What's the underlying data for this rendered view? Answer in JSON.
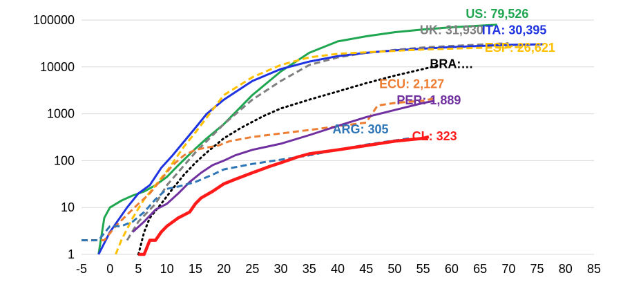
{
  "chart_data": {
    "type": "line",
    "yscale": "log",
    "xlim": [
      -5,
      85
    ],
    "ylim": [
      1,
      100000
    ],
    "x_ticks": [
      "-5",
      "0",
      "5",
      "10",
      "15",
      "20",
      "25",
      "30",
      "35",
      "40",
      "45",
      "50",
      "55",
      "60",
      "65",
      "70",
      "75",
      "80",
      "85"
    ],
    "y_ticks": [
      "1",
      "10",
      "100",
      "1000",
      "10000",
      "100000"
    ],
    "grid": "horizontal",
    "legend": "none",
    "series": [
      {
        "name": "US",
        "label": "US: 79,526",
        "color": "#1FA650",
        "dash": "solid",
        "points": [
          [
            -2,
            1
          ],
          [
            -1,
            6
          ],
          [
            0,
            10
          ],
          [
            2,
            14
          ],
          [
            4,
            18
          ],
          [
            6,
            22
          ],
          [
            8,
            30
          ],
          [
            10,
            45
          ],
          [
            12,
            80
          ],
          [
            15,
            180
          ],
          [
            17,
            300
          ],
          [
            20,
            600
          ],
          [
            25,
            2500
          ],
          [
            30,
            8000
          ],
          [
            35,
            20000
          ],
          [
            40,
            35000
          ],
          [
            45,
            45000
          ],
          [
            50,
            55000
          ],
          [
            55,
            63000
          ],
          [
            60,
            70000
          ],
          [
            65,
            76000
          ],
          [
            68,
            79526
          ]
        ]
      },
      {
        "name": "UK",
        "label": "UK: 31,930",
        "color": "#7F7F7F",
        "dash": "dashed",
        "points": [
          [
            3,
            2
          ],
          [
            5,
            5
          ],
          [
            8,
            12
          ],
          [
            10,
            30
          ],
          [
            15,
            150
          ],
          [
            20,
            600
          ],
          [
            25,
            2000
          ],
          [
            30,
            5000
          ],
          [
            35,
            11000
          ],
          [
            40,
            16000
          ],
          [
            45,
            20000
          ],
          [
            50,
            23000
          ],
          [
            55,
            26000
          ],
          [
            60,
            28000
          ],
          [
            65,
            30000
          ],
          [
            70,
            31930
          ]
        ]
      },
      {
        "name": "ITA",
        "label": "ITA: 30,395",
        "color": "#1F33E0",
        "dash": "solid",
        "points": [
          [
            -2,
            1
          ],
          [
            0,
            3
          ],
          [
            3,
            10
          ],
          [
            5,
            20
          ],
          [
            7,
            30
          ],
          [
            9,
            70
          ],
          [
            11,
            130
          ],
          [
            15,
            500
          ],
          [
            17,
            1000
          ],
          [
            20,
            2000
          ],
          [
            25,
            5000
          ],
          [
            30,
            9000
          ],
          [
            35,
            13000
          ],
          [
            40,
            17000
          ],
          [
            45,
            20000
          ],
          [
            50,
            22500
          ],
          [
            55,
            24500
          ],
          [
            60,
            26500
          ],
          [
            65,
            28000
          ],
          [
            70,
            29500
          ],
          [
            76,
            30395
          ]
        ]
      },
      {
        "name": "ESP",
        "label": "ESP: 26,621",
        "color": "#FFC000",
        "dash": "dashed",
        "points": [
          [
            1,
            1
          ],
          [
            2,
            2
          ],
          [
            4,
            6
          ],
          [
            6,
            15
          ],
          [
            8,
            30
          ],
          [
            10,
            60
          ],
          [
            13,
            200
          ],
          [
            15,
            400
          ],
          [
            18,
            1200
          ],
          [
            20,
            2500
          ],
          [
            25,
            6000
          ],
          [
            30,
            11000
          ],
          [
            35,
            16000
          ],
          [
            40,
            19000
          ],
          [
            45,
            20500
          ],
          [
            50,
            22000
          ],
          [
            55,
            23500
          ],
          [
            60,
            24500
          ],
          [
            65,
            25500
          ],
          [
            70,
            26200
          ],
          [
            73,
            26621
          ]
        ]
      },
      {
        "name": "BRA",
        "label": "BRA:…",
        "color": "#000000",
        "dash": "dotted",
        "points": [
          [
            5,
            1
          ],
          [
            6,
            3
          ],
          [
            7,
            6
          ],
          [
            9,
            12
          ],
          [
            11,
            25
          ],
          [
            13,
            50
          ],
          [
            15,
            90
          ],
          [
            17,
            150
          ],
          [
            20,
            300
          ],
          [
            23,
            500
          ],
          [
            27,
            900
          ],
          [
            30,
            1300
          ],
          [
            35,
            2000
          ],
          [
            40,
            3000
          ],
          [
            45,
            4500
          ],
          [
            50,
            6500
          ],
          [
            55,
            9000
          ],
          [
            58,
            11000
          ]
        ]
      },
      {
        "name": "ECU",
        "label": "ECU: 2,127",
        "color": "#ED7D31",
        "dash": "dashed",
        "points": [
          [
            -5,
            2
          ],
          [
            -1,
            2
          ],
          [
            1,
            4
          ],
          [
            3,
            7
          ],
          [
            5,
            12
          ],
          [
            7,
            20
          ],
          [
            9,
            40
          ],
          [
            11,
            80
          ],
          [
            13,
            130
          ],
          [
            15,
            170
          ],
          [
            17,
            190
          ],
          [
            19,
            210
          ],
          [
            21,
            260
          ],
          [
            25,
            320
          ],
          [
            30,
            380
          ],
          [
            35,
            450
          ],
          [
            40,
            540
          ],
          [
            45,
            650
          ],
          [
            47,
            1500
          ],
          [
            50,
            1700
          ],
          [
            55,
            1900
          ],
          [
            57,
            2127
          ]
        ]
      },
      {
        "name": "PER",
        "label": "PER: 1,889",
        "color": "#7030A0",
        "dash": "solid",
        "points": [
          [
            4,
            3
          ],
          [
            6,
            5
          ],
          [
            8,
            9
          ],
          [
            10,
            12
          ],
          [
            12,
            20
          ],
          [
            14,
            35
          ],
          [
            16,
            55
          ],
          [
            18,
            80
          ],
          [
            20,
            100
          ],
          [
            22,
            130
          ],
          [
            25,
            170
          ],
          [
            30,
            230
          ],
          [
            35,
            350
          ],
          [
            40,
            550
          ],
          [
            45,
            850
          ],
          [
            50,
            1200
          ],
          [
            55,
            1700
          ],
          [
            57,
            1889
          ]
        ]
      },
      {
        "name": "ARG",
        "label": "ARG: 305",
        "color": "#2E75B6",
        "dash": "dashed",
        "points": [
          [
            -5,
            2
          ],
          [
            -2,
            2
          ],
          [
            0,
            4
          ],
          [
            2,
            4
          ],
          [
            4,
            5
          ],
          [
            6,
            8
          ],
          [
            8,
            15
          ],
          [
            10,
            25
          ],
          [
            12,
            28
          ],
          [
            15,
            35
          ],
          [
            18,
            50
          ],
          [
            20,
            65
          ],
          [
            25,
            85
          ],
          [
            30,
            105
          ],
          [
            35,
            130
          ],
          [
            40,
            170
          ],
          [
            45,
            220
          ],
          [
            50,
            270
          ],
          [
            53,
            305
          ]
        ]
      },
      {
        "name": "CL",
        "label": "CL: 323",
        "color": "#FF1A1A",
        "dash": "solid",
        "points": [
          [
            5,
            1
          ],
          [
            6,
            1
          ],
          [
            7,
            2
          ],
          [
            8,
            2
          ],
          [
            9,
            3
          ],
          [
            10,
            4
          ],
          [
            12,
            6
          ],
          [
            14,
            8
          ],
          [
            15,
            12
          ],
          [
            16,
            16
          ],
          [
            18,
            22
          ],
          [
            20,
            32
          ],
          [
            22,
            40
          ],
          [
            25,
            55
          ],
          [
            28,
            75
          ],
          [
            30,
            90
          ],
          [
            33,
            120
          ],
          [
            35,
            140
          ],
          [
            40,
            170
          ],
          [
            45,
            210
          ],
          [
            50,
            260
          ],
          [
            55,
            300
          ],
          [
            56,
            323
          ]
        ]
      }
    ],
    "labels": [
      {
        "series": "US",
        "text": "US: 79,526",
        "color": "#1FA650",
        "x": 68,
        "y": 110000
      },
      {
        "series": "UK",
        "text": "UK: 31,930",
        "color": "#7F7F7F",
        "x": 60,
        "y": 50000
      },
      {
        "series": "ITA",
        "text": "ITA: 30,395",
        "color": "#1F33E0",
        "x": 71,
        "y": 50000
      },
      {
        "series": "ESP",
        "text": "ESP: 26,621",
        "color": "#FFC000",
        "x": 72,
        "y": 21000
      },
      {
        "series": "BRA",
        "text": "BRA:…",
        "color": "#000000",
        "x": 60,
        "y": 9500
      },
      {
        "series": "ECU",
        "text": "ECU: 2,127",
        "color": "#ED7D31",
        "x": 53,
        "y": 3500
      },
      {
        "series": "PER",
        "text": "PER: 1,889",
        "color": "#7030A0",
        "x": 56,
        "y": 1600
      },
      {
        "series": "ARG",
        "text": "ARG: 305",
        "color": "#2E75B6",
        "x": 44,
        "y": 380
      },
      {
        "series": "CL",
        "text": "CL: 323",
        "color": "#FF1A1A",
        "x": 57,
        "y": 270
      }
    ]
  }
}
